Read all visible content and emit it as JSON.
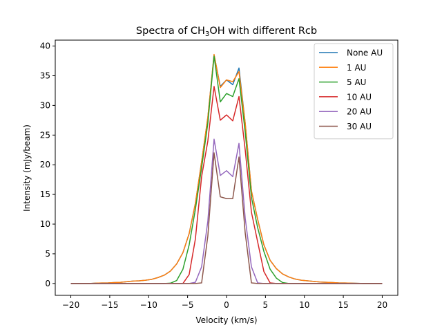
{
  "chart_data": {
    "type": "line",
    "title": {
      "prefix": "Spectra of CH",
      "sub": "3",
      "suffix": "OH with different Rcb"
    },
    "xlabel": "Velocity (km/s)",
    "ylabel": "Intensity (mJy/beam)",
    "xlim": [
      -22,
      22
    ],
    "ylim": [
      -2,
      41
    ],
    "xticks": [
      -20,
      -15,
      -10,
      -5,
      0,
      5,
      10,
      15,
      20
    ],
    "yticks": [
      0,
      5,
      10,
      15,
      20,
      25,
      30,
      35,
      40
    ],
    "grid": false,
    "legend_position": "top-right",
    "x": [
      -20,
      -19.2,
      -18.4,
      -17.6,
      -16.8,
      -16,
      -15.2,
      -14.4,
      -13.6,
      -12.8,
      -12,
      -11.2,
      -10.4,
      -9.6,
      -8.8,
      -8,
      -7.2,
      -6.4,
      -5.6,
      -4.8,
      -4,
      -3.2,
      -2.4,
      -1.6,
      -0.8,
      0,
      0.8,
      1.6,
      2.4,
      3.2,
      4,
      4.8,
      5.6,
      6.4,
      7.2,
      8,
      8.8,
      9.6,
      10.4,
      11.2,
      12,
      12.8,
      13.6,
      14.4,
      15.2,
      16,
      16.8,
      17.6,
      18.4,
      19.2,
      20
    ],
    "series": [
      {
        "name": "None AU",
        "color": "#1f77b4",
        "values": [
          0,
          0,
          0,
          0,
          0.05,
          0.08,
          0.1,
          0.15,
          0.2,
          0.3,
          0.4,
          0.45,
          0.55,
          0.7,
          1.0,
          1.4,
          2.1,
          3.3,
          5.2,
          8.4,
          13.5,
          20.5,
          28.0,
          38.5,
          33.2,
          34.3,
          33.5,
          36.3,
          27.0,
          15.6,
          10.8,
          6.5,
          3.9,
          2.5,
          1.6,
          1.1,
          0.75,
          0.55,
          0.45,
          0.35,
          0.25,
          0.2,
          0.15,
          0.1,
          0.08,
          0.05,
          0.03,
          0,
          0,
          0,
          0
        ]
      },
      {
        "name": "1 AU",
        "color": "#ff7f0e",
        "values": [
          0,
          0,
          0,
          0,
          0.05,
          0.08,
          0.1,
          0.15,
          0.2,
          0.3,
          0.4,
          0.45,
          0.55,
          0.7,
          1.0,
          1.4,
          2.1,
          3.3,
          5.2,
          8.4,
          13.5,
          20.5,
          28.0,
          38.6,
          33.0,
          34.3,
          34.0,
          35.7,
          27.0,
          15.6,
          10.8,
          6.5,
          3.9,
          2.5,
          1.6,
          1.1,
          0.75,
          0.55,
          0.45,
          0.35,
          0.25,
          0.2,
          0.15,
          0.1,
          0.08,
          0.05,
          0.03,
          0,
          0,
          0,
          0
        ]
      },
      {
        "name": "5 AU",
        "color": "#2ca02c",
        "values": [
          0,
          0,
          0,
          0,
          0,
          0,
          0,
          0,
          0,
          0,
          0,
          0,
          0,
          0,
          0,
          0,
          0.05,
          0.5,
          2.4,
          6.5,
          12.5,
          19.5,
          27.0,
          38.3,
          30.6,
          32.0,
          31.5,
          34.5,
          25.5,
          14.5,
          9.4,
          5.4,
          2.4,
          0.9,
          0.15,
          0,
          0,
          0,
          0,
          0,
          0,
          0,
          0,
          0,
          0,
          0,
          0,
          0,
          0,
          0,
          0
        ]
      },
      {
        "name": "10 AU",
        "color": "#d62728",
        "values": [
          0,
          0,
          0,
          0,
          0,
          0,
          0,
          0,
          0,
          0,
          0,
          0,
          0,
          0,
          0,
          0,
          0,
          0,
          0,
          1.5,
          7.5,
          18.0,
          24.0,
          33.2,
          27.5,
          28.4,
          27.4,
          31.5,
          22.5,
          12.0,
          7.0,
          2.0,
          0.1,
          0,
          0,
          0,
          0,
          0,
          0,
          0,
          0,
          0,
          0,
          0,
          0,
          0,
          0,
          0,
          0,
          0,
          0
        ]
      },
      {
        "name": "20 AU",
        "color": "#9467bd",
        "values": [
          0,
          0,
          0,
          0,
          0,
          0,
          0,
          0,
          0,
          0,
          0,
          0,
          0,
          0,
          0,
          0,
          0,
          0,
          0,
          0,
          0.2,
          2.8,
          10.5,
          24.3,
          18.2,
          19.0,
          18.0,
          23.6,
          11.0,
          2.8,
          0.1,
          0,
          0,
          0,
          0,
          0,
          0,
          0,
          0,
          0,
          0,
          0,
          0,
          0,
          0,
          0,
          0,
          0,
          0,
          0,
          0
        ]
      },
      {
        "name": "30 AU",
        "color": "#8c564b",
        "values": [
          0,
          0,
          0,
          0,
          0,
          0,
          0,
          0,
          0,
          0,
          0,
          0,
          0,
          0,
          0,
          0,
          0,
          0,
          0,
          0,
          0,
          0.1,
          8.0,
          22.0,
          14.6,
          14.3,
          14.3,
          21.3,
          8.5,
          0.1,
          0,
          0,
          0,
          0,
          0,
          0,
          0,
          0,
          0,
          0,
          0,
          0,
          0,
          0,
          0,
          0,
          0,
          0,
          0,
          0,
          0
        ]
      }
    ]
  }
}
